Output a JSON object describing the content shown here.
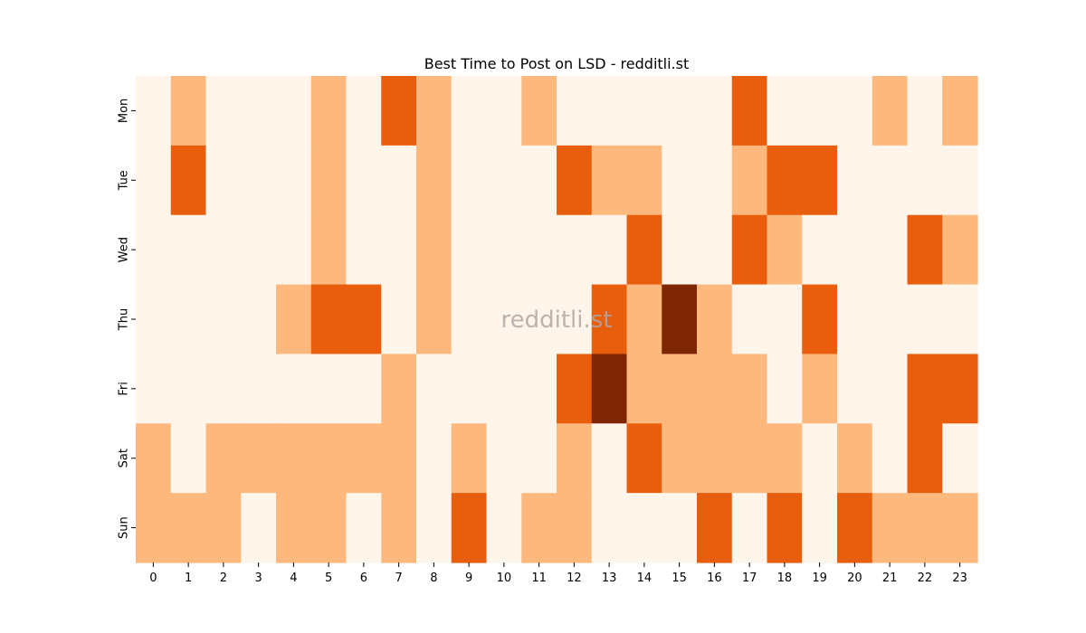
{
  "chart_data": {
    "type": "heatmap",
    "title": "Best Time to Post on LSD - redditli.st",
    "watermark": "redditli.st",
    "x_categories": [
      "0",
      "1",
      "2",
      "3",
      "4",
      "5",
      "6",
      "7",
      "8",
      "9",
      "10",
      "11",
      "12",
      "13",
      "14",
      "15",
      "16",
      "17",
      "18",
      "19",
      "20",
      "21",
      "22",
      "23"
    ],
    "y_categories": [
      "Mon",
      "Tue",
      "Wed",
      "Thu",
      "Fri",
      "Sat",
      "Sun"
    ],
    "values": [
      [
        0,
        1,
        0,
        0,
        0,
        1,
        0,
        2,
        1,
        0,
        0,
        1,
        0,
        0,
        0,
        0,
        0,
        2,
        0,
        0,
        0,
        1,
        0,
        1
      ],
      [
        0,
        2,
        0,
        0,
        0,
        1,
        0,
        0,
        1,
        0,
        0,
        0,
        2,
        1,
        1,
        0,
        0,
        1,
        2,
        2,
        0,
        0,
        0,
        0
      ],
      [
        0,
        0,
        0,
        0,
        0,
        1,
        0,
        0,
        1,
        0,
        0,
        0,
        0,
        0,
        2,
        0,
        0,
        2,
        1,
        0,
        0,
        0,
        2,
        1
      ],
      [
        0,
        0,
        0,
        0,
        1,
        2,
        2,
        0,
        1,
        0,
        0,
        0,
        0,
        2,
        1,
        3,
        1,
        0,
        0,
        2,
        0,
        0,
        0,
        0
      ],
      [
        0,
        0,
        0,
        0,
        0,
        0,
        0,
        1,
        0,
        0,
        0,
        0,
        2,
        3,
        1,
        1,
        1,
        1,
        0,
        1,
        0,
        0,
        2,
        2
      ],
      [
        1,
        0,
        1,
        1,
        1,
        1,
        1,
        1,
        0,
        1,
        0,
        0,
        1,
        0,
        2,
        1,
        1,
        1,
        1,
        0,
        1,
        0,
        2,
        0
      ],
      [
        1,
        1,
        1,
        0,
        1,
        1,
        0,
        1,
        0,
        2,
        0,
        1,
        1,
        0,
        0,
        0,
        2,
        0,
        2,
        0,
        2,
        1,
        1,
        1
      ]
    ],
    "colors": [
      "#fff5eb",
      "#fdb97d",
      "#e95e0d",
      "#7f2704"
    ],
    "grid": false,
    "legend": "none"
  }
}
